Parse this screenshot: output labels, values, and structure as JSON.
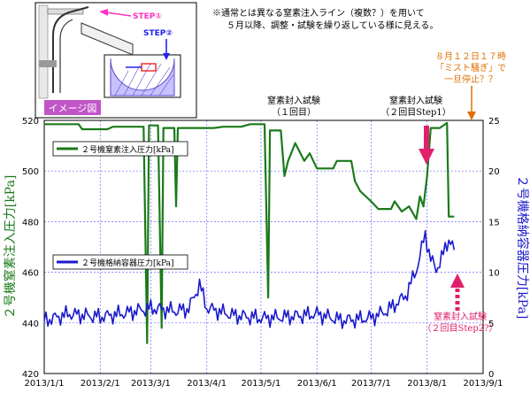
{
  "chart_data": {
    "type": "line",
    "x_range": [
      "2013-01-01",
      "2013-09-01"
    ],
    "x_ticks": [
      "2013/1/1",
      "2013/2/1",
      "2013/3/1",
      "2013/4/1",
      "2013/5/1",
      "2013/6/1",
      "2013/7/1",
      "2013/8/1",
      "2013/9/1"
    ],
    "y_left": {
      "label": "２号機窒素注入圧力[kPa]",
      "ylim": [
        420,
        520
      ],
      "ticks": [
        "420",
        "440",
        "460",
        "480",
        "500",
        "520"
      ],
      "color": "#1a7a1a"
    },
    "y_right": {
      "label": "２号機格納容器圧力[kPa]",
      "ylim": [
        0,
        25
      ],
      "ticks": [
        "0",
        "5",
        "10",
        "15",
        "20",
        "25"
      ],
      "color": "#1a1acc"
    },
    "grid": true,
    "series": [
      {
        "name": "２号機窒素注入圧力[kPa]",
        "axis": "left",
        "color": "#1a7a1a",
        "points": [
          [
            "2013-01-01",
            518.5
          ],
          [
            "2013-01-20",
            518.5
          ],
          [
            "2013-01-22",
            516.5
          ],
          [
            "2013-02-05",
            516.5
          ],
          [
            "2013-02-08",
            517.5
          ],
          [
            "2013-02-25",
            517.5
          ],
          [
            "2013-02-27",
            432
          ],
          [
            "2013-02-28",
            518
          ],
          [
            "2013-03-05",
            518
          ],
          [
            "2013-03-07",
            438
          ],
          [
            "2013-03-08",
            517
          ],
          [
            "2013-03-14",
            517
          ],
          [
            "2013-03-15",
            486
          ],
          [
            "2013-03-16",
            517
          ],
          [
            "2013-04-05",
            517
          ],
          [
            "2013-04-10",
            517.5
          ],
          [
            "2013-04-20",
            517.5
          ],
          [
            "2013-04-25",
            518.5
          ],
          [
            "2013-05-03",
            518.5
          ],
          [
            "2013-05-05",
            450
          ],
          [
            "2013-05-06",
            516
          ],
          [
            "2013-05-12",
            516
          ],
          [
            "2013-05-14",
            498
          ],
          [
            "2013-05-16",
            504
          ],
          [
            "2013-05-20",
            511
          ],
          [
            "2013-05-25",
            504
          ],
          [
            "2013-05-28",
            507
          ],
          [
            "2013-06-01",
            501
          ],
          [
            "2013-06-10",
            501
          ],
          [
            "2013-06-12",
            504
          ],
          [
            "2013-06-20",
            504
          ],
          [
            "2013-06-22",
            496
          ],
          [
            "2013-06-25",
            492
          ],
          [
            "2013-07-01",
            488
          ],
          [
            "2013-07-05",
            485
          ],
          [
            "2013-07-12",
            485
          ],
          [
            "2013-07-14",
            488
          ],
          [
            "2013-07-18",
            484
          ],
          [
            "2013-07-22",
            486
          ],
          [
            "2013-07-26",
            481
          ],
          [
            "2013-07-28",
            490
          ],
          [
            "2013-07-30",
            486
          ],
          [
            "2013-08-01",
            498
          ],
          [
            "2013-08-03",
            517
          ],
          [
            "2013-08-08",
            517
          ],
          [
            "2013-08-12",
            519
          ],
          [
            "2013-08-13",
            482
          ],
          [
            "2013-08-16",
            482
          ]
        ]
      },
      {
        "name": "２号機格納容器圧力[kPa]",
        "axis": "right",
        "color": "#1a1acc",
        "points": [
          [
            "2013-01-01",
            5.5
          ],
          [
            "2013-01-15",
            6.2
          ],
          [
            "2013-02-01",
            5.8
          ],
          [
            "2013-02-15",
            6.0
          ],
          [
            "2013-03-01",
            6.3
          ],
          [
            "2013-03-15",
            5.9
          ],
          [
            "2013-03-22",
            6.1
          ],
          [
            "2013-03-28",
            8.5
          ],
          [
            "2013-04-01",
            6.2
          ],
          [
            "2013-04-15",
            5.6
          ],
          [
            "2013-05-01",
            5.5
          ],
          [
            "2013-05-15",
            5.8
          ],
          [
            "2013-06-01",
            6.2
          ],
          [
            "2013-06-15",
            5.5
          ],
          [
            "2013-07-01",
            5.6
          ],
          [
            "2013-07-10",
            6.2
          ],
          [
            "2013-07-20",
            7.5
          ],
          [
            "2013-07-26",
            10.0
          ],
          [
            "2013-07-31",
            13.5
          ],
          [
            "2013-08-03",
            11.0
          ],
          [
            "2013-08-06",
            10.0
          ],
          [
            "2013-08-10",
            11.5
          ],
          [
            "2013-08-13",
            13.0
          ],
          [
            "2013-08-16",
            12.2
          ]
        ]
      }
    ],
    "annotations": [
      {
        "id": "step1",
        "text": [
          "窒素封入試験",
          "（２回目Step1）"
        ],
        "color": "#000000"
      },
      {
        "id": "first",
        "text": [
          "窒素封入試験",
          "（１回目）"
        ],
        "color": "#000000"
      },
      {
        "id": "mist",
        "text": [
          "８月１２日１７時",
          "「ミスト騒ぎ」で",
          "一旦停止？？"
        ],
        "color": "#e07000"
      },
      {
        "id": "step2",
        "text": [
          "窒素封入試験",
          "（２回目Step2?）"
        ],
        "color": "#e0206a"
      }
    ],
    "note": [
      "※通常とは異なる窒素注入ライン（複数？）を用いて",
      "５月以降、調整・試験を繰り返している様に見える。"
    ],
    "inset": {
      "title": "イメージ図",
      "labels": [
        "STEP①",
        "STEP②"
      ]
    }
  }
}
